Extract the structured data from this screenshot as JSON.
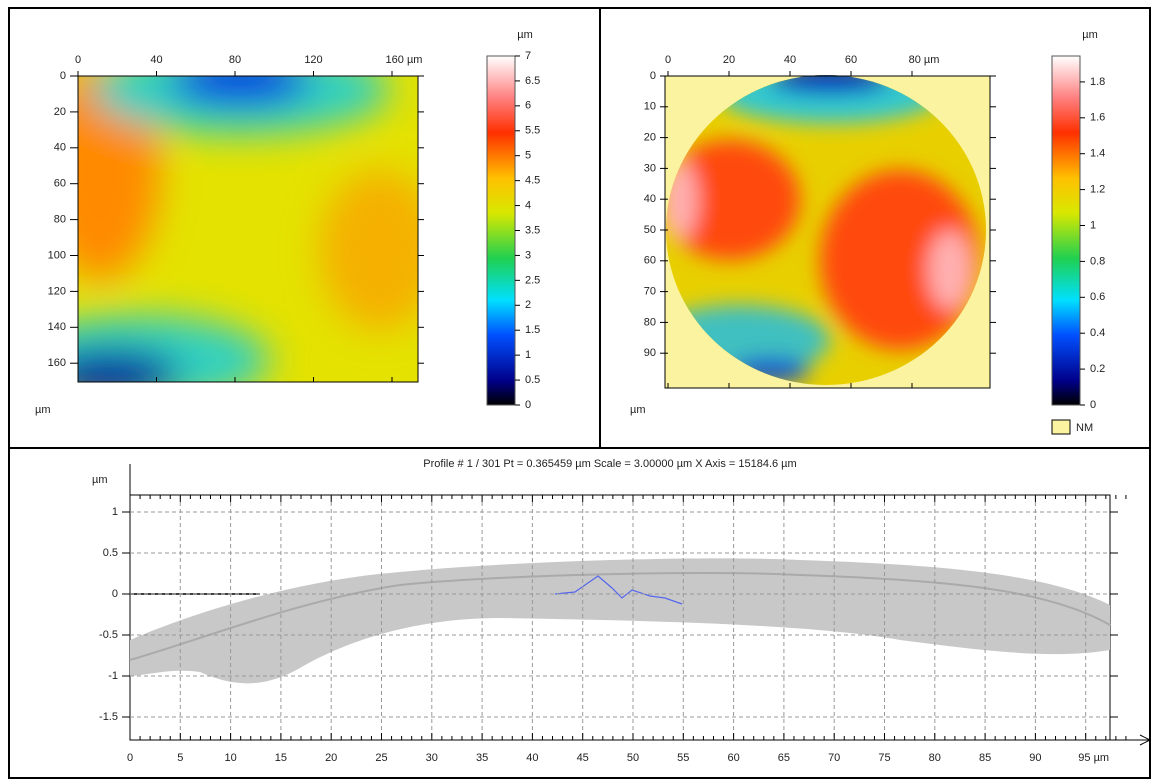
{
  "panels": [
    {
      "x_ticks": [
        "0",
        "40",
        "80",
        "120",
        "160 µm"
      ],
      "y_ticks": [
        "0",
        "20",
        "40",
        "60",
        "80",
        "100",
        "120",
        "140",
        "160"
      ],
      "y_unit": "µm",
      "colorbar": {
        "unit": "µm",
        "ticks": [
          "0",
          "0.5",
          "1",
          "1.5",
          "2",
          "2.5",
          "3",
          "3.5",
          "4",
          "4.5",
          "5",
          "5.5",
          "6",
          "6.5",
          "7"
        ]
      }
    },
    {
      "x_ticks": [
        "0",
        "20",
        "40",
        "60",
        "80 µm"
      ],
      "y_ticks": [
        "0",
        "10",
        "20",
        "30",
        "40",
        "50",
        "60",
        "70",
        "80",
        "90"
      ],
      "y_unit": "µm",
      "colorbar": {
        "unit": "µm",
        "ticks": [
          "0",
          "0.2",
          "0.4",
          "0.6",
          "0.8",
          "1",
          "1.2",
          "1.4",
          "1.6",
          "1.8"
        ]
      },
      "legend": "NM"
    }
  ],
  "profile": {
    "title": "Profile # 1 / 301 Pt = 0.365459 µm  Scale = 3.00000 µm X Axis = 15184.6 µm",
    "y_unit": "µm",
    "y_ticks": [
      "1",
      "0.5",
      "0",
      "-0.5",
      "-1",
      "-1.5"
    ],
    "x_ticks": [
      "0",
      "5",
      "10",
      "15",
      "20",
      "25",
      "30",
      "35",
      "40",
      "45",
      "50",
      "55",
      "60",
      "65",
      "70",
      "75",
      "80",
      "85",
      "90",
      "95 µm"
    ]
  }
}
